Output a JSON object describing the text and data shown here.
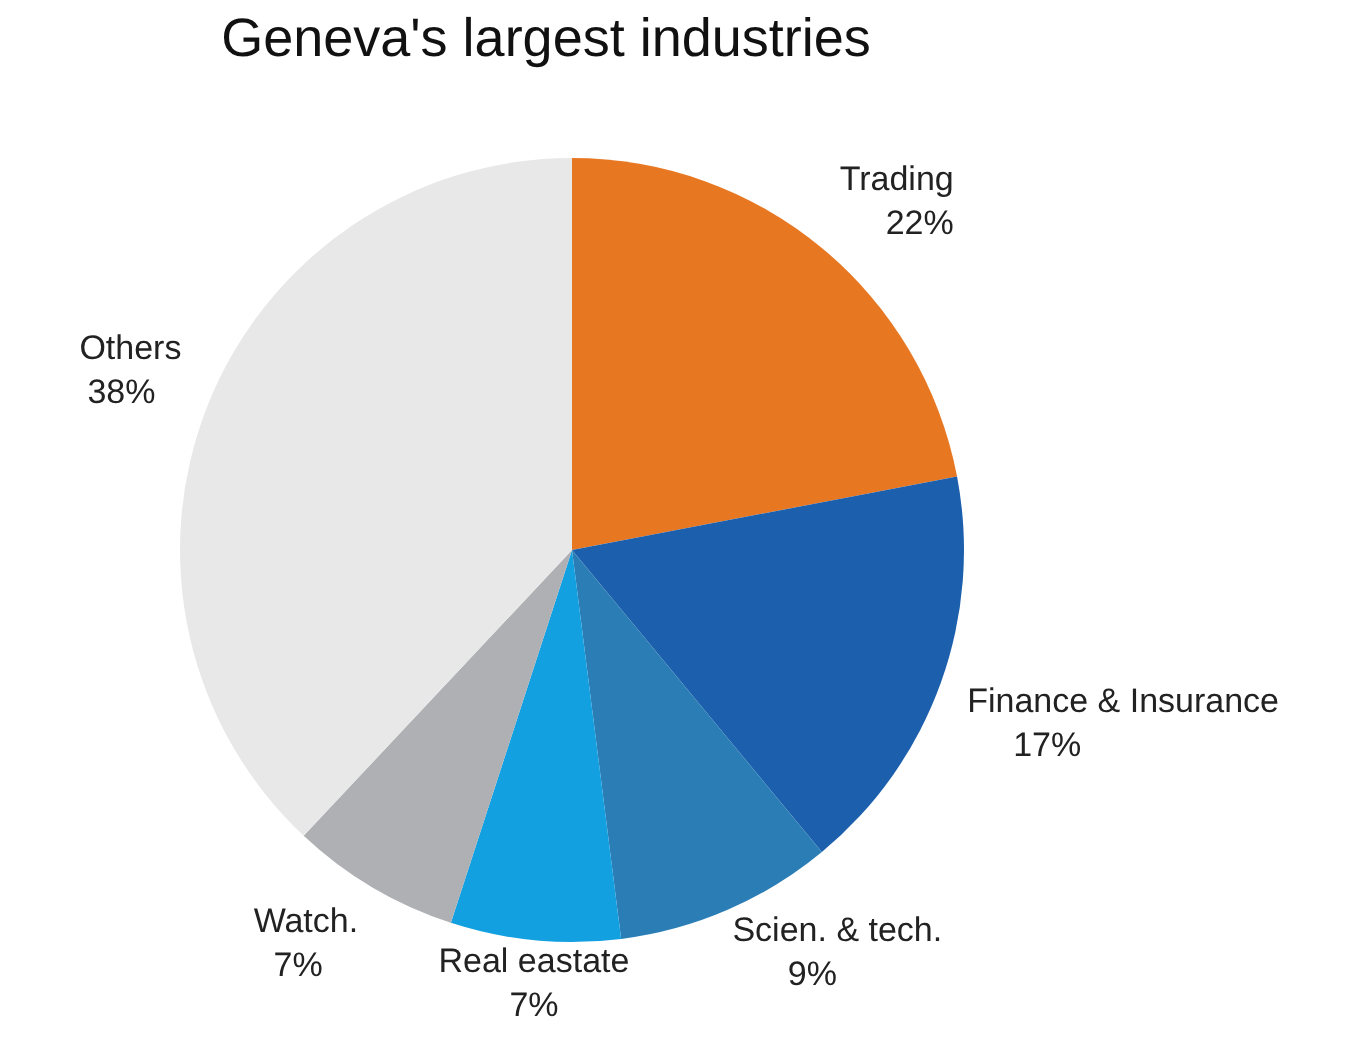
{
  "chart_data": {
    "type": "pie",
    "title": "Geneva's largest industries",
    "categories": [
      "Trading",
      "Finance & Insurance",
      "Scien. & tech.",
      "Real eastate",
      "Watch.",
      "Others"
    ],
    "values": [
      22,
      17,
      9,
      7,
      7,
      38
    ],
    "colors": [
      "#e87722",
      "#1c5fad",
      "#2a7db5",
      "#13a0e0",
      "#aeb0b4",
      "#e8e8e8"
    ],
    "value_labels": [
      "22%",
      "17%",
      "9%",
      "7%",
      "7%",
      "38%"
    ]
  }
}
